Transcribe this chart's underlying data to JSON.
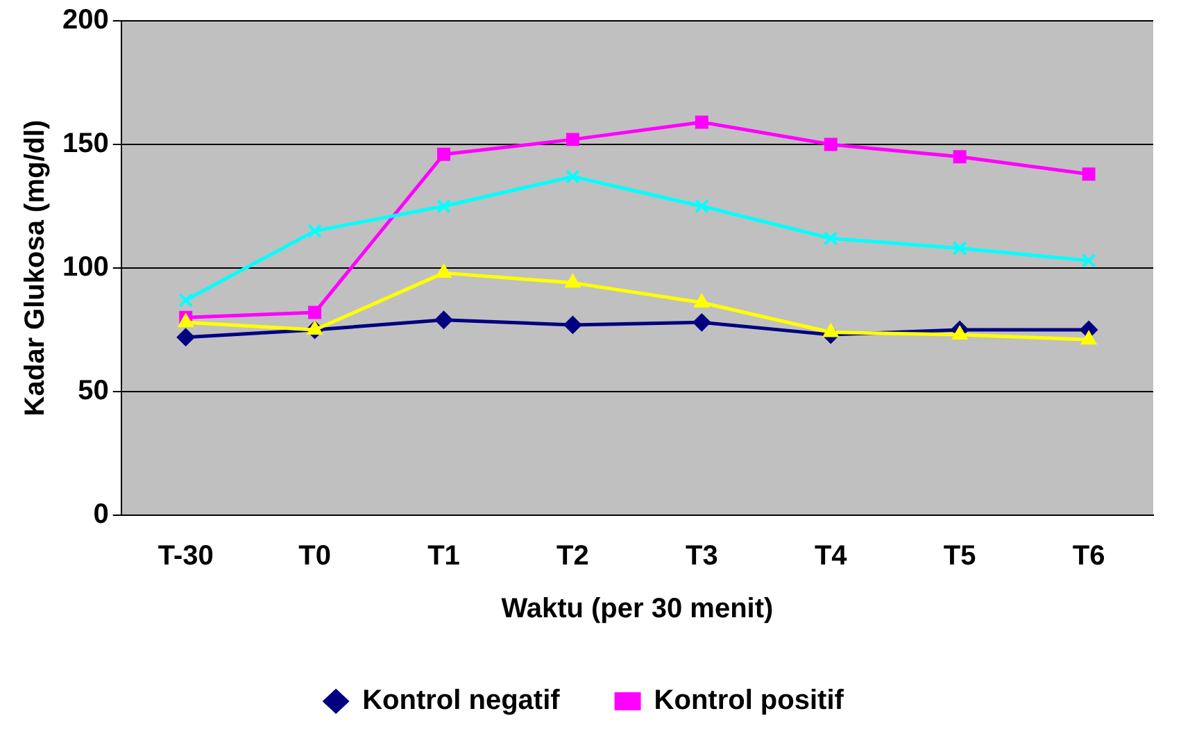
{
  "chart_data": {
    "type": "line",
    "xlabel": "Waktu (per 30 menit)",
    "ylabel": "Kadar Glukosa (mg/dl)",
    "categories": [
      "T-30",
      "T0",
      "T1",
      "T2",
      "T3",
      "T4",
      "T5",
      "T6"
    ],
    "series": [
      {
        "name": "Kontrol negatif",
        "color": "#000080",
        "marker": "diamond",
        "values": [
          72,
          75,
          79,
          77,
          78,
          73,
          75,
          75
        ]
      },
      {
        "name": "Kontrol positif",
        "color": "#ff00ff",
        "marker": "square",
        "values": [
          80,
          82,
          146,
          152,
          159,
          150,
          145,
          138
        ]
      },
      {
        "color": "#00ffff",
        "marker": "cross",
        "values": [
          87,
          115,
          125,
          137,
          125,
          112,
          108,
          103
        ]
      },
      {
        "color": "#ffff00",
        "marker": "triangle",
        "values": [
          78,
          75,
          98,
          94,
          86,
          74,
          73,
          71
        ]
      }
    ],
    "ylim": [
      0,
      200
    ],
    "yticks": [
      0,
      50,
      100,
      150,
      200
    ],
    "grid": "y",
    "legend": "bottom",
    "line_style": "solid"
  }
}
